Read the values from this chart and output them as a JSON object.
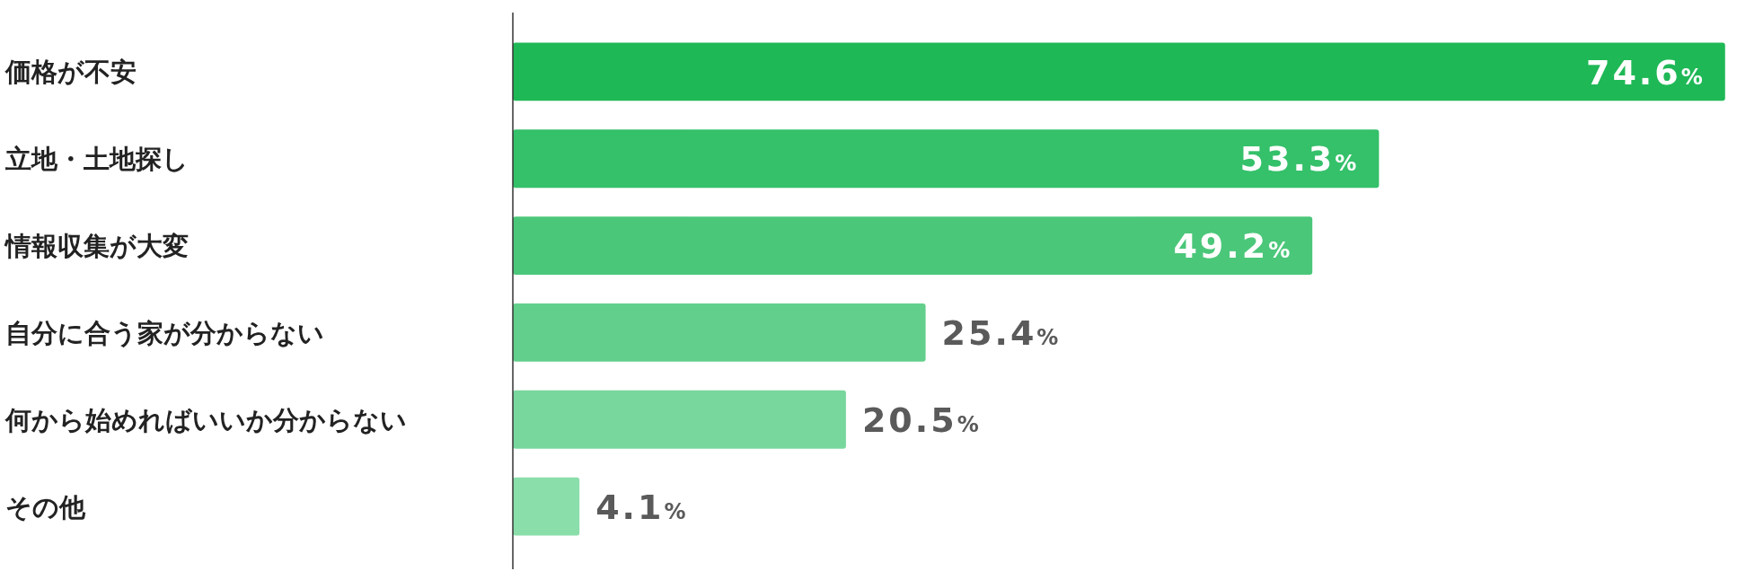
{
  "chart_data": {
    "type": "bar",
    "orientation": "horizontal",
    "categories": [
      "価格が不安",
      "立地・土地探し",
      "情報収集が大変",
      "自分に合う家が分からない",
      "何から始めればいいか分からない",
      "その他"
    ],
    "values": [
      74.6,
      53.3,
      49.2,
      25.4,
      20.5,
      4.1
    ],
    "colors": [
      "#1fb856",
      "#35c06a",
      "#4bc77a",
      "#62cf8c",
      "#78d79d",
      "#8adeaa"
    ],
    "value_labels": [
      "74.6%",
      "53.3%",
      "49.2%",
      "25.4%",
      "20.5%",
      "4.1%"
    ],
    "xlim": [
      0,
      75
    ]
  }
}
